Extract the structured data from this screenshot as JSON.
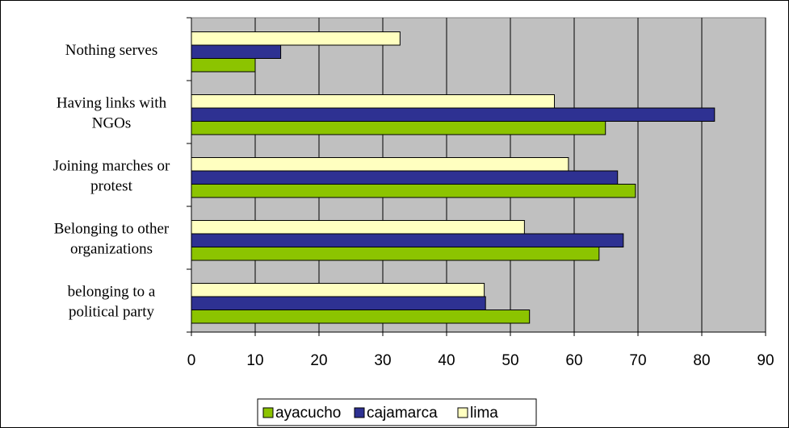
{
  "chart_data": {
    "type": "bar",
    "orientation": "horizontal",
    "categories": [
      [
        "Nothing serves"
      ],
      [
        "Having links with",
        "NGOs"
      ],
      [
        "Joining marches or",
        "protest"
      ],
      [
        "Belonging to other",
        "organizations"
      ],
      [
        "belonging to a",
        "political party"
      ]
    ],
    "series": [
      {
        "name": "lima",
        "color": "#FFFFC0",
        "values": [
          32.7,
          56.9,
          59.1,
          52.2,
          45.9
        ]
      },
      {
        "name": "cajamarca",
        "color": "#2E3192",
        "values": [
          14.0,
          82.0,
          66.8,
          67.7,
          46.1
        ]
      },
      {
        "name": "ayacucho",
        "color": "#8CC400",
        "values": [
          10.0,
          64.9,
          69.6,
          63.9,
          53.0
        ]
      }
    ],
    "legend_order": [
      "ayacucho",
      "cajamarca",
      "lima"
    ],
    "x_ticks": [
      "0",
      "10",
      "20",
      "30",
      "40",
      "50",
      "60",
      "70",
      "80",
      "90"
    ],
    "xlim": [
      0,
      90
    ],
    "grid": "vertical",
    "plot_background": "#C0C0C0",
    "legend_position": "bottom",
    "title": "",
    "xlabel": "",
    "ylabel": ""
  }
}
